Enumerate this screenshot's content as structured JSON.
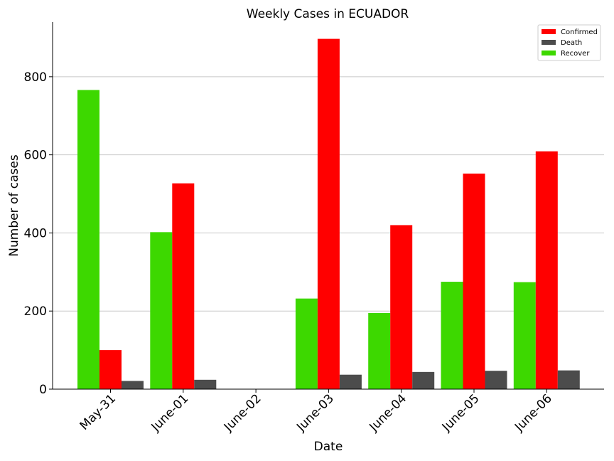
{
  "chart_data": {
    "type": "bar",
    "title": "Weekly Cases in ECUADOR",
    "xlabel": "Date",
    "ylabel": "Number of cases",
    "categories": [
      "May-31",
      "June-01",
      "June-02",
      "June-03",
      "June-04",
      "June-05",
      "June-06"
    ],
    "series": [
      {
        "name": "Recover",
        "color": "#3dd800",
        "values": [
          766,
          402,
          0,
          232,
          195,
          275,
          274
        ]
      },
      {
        "name": "Confirmed",
        "color": "#ff0000",
        "values": [
          100,
          527,
          0,
          897,
          420,
          552,
          609
        ]
      },
      {
        "name": "Death",
        "color": "#4c4c4c",
        "values": [
          21,
          24,
          0,
          37,
          44,
          47,
          48
        ]
      }
    ],
    "legend_order": [
      "Confirmed",
      "Death",
      "Recover"
    ],
    "legend_position": "top-right",
    "ylim": [
      0,
      940
    ],
    "yticks": [
      0,
      200,
      400,
      600,
      800
    ],
    "grid": "horizontal"
  }
}
